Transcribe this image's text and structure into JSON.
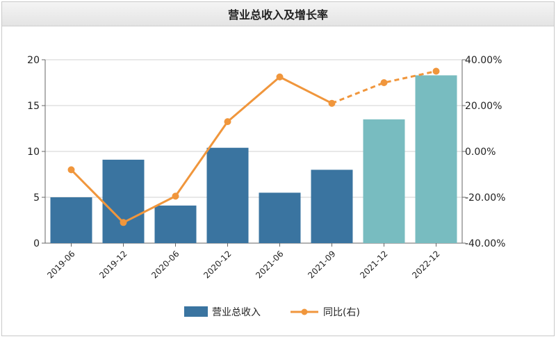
{
  "chart_data": {
    "type": "bar",
    "title": "营业总收入及增长率",
    "categories": [
      "2019-06",
      "2019-12",
      "2020-06",
      "2020-12",
      "2021-06",
      "2021-09",
      "2021-12",
      "2022-12"
    ],
    "series": [
      {
        "name": "营业总收入",
        "type": "bar",
        "axis": "left",
        "values": [
          5.0,
          9.1,
          4.1,
          10.4,
          5.5,
          8.0,
          13.5,
          18.3
        ],
        "colors": [
          "#3a74a0",
          "#3a74a0",
          "#3a74a0",
          "#3a74a0",
          "#3a74a0",
          "#3a74a0",
          "#78bcc0",
          "#78bcc0"
        ],
        "estimated_from_index": 6
      },
      {
        "name": "同比(右)",
        "type": "line",
        "axis": "right",
        "values": [
          -8.0,
          -31.0,
          -19.5,
          13.0,
          32.5,
          21.0,
          30.0,
          35.0
        ],
        "color": "#f0963c",
        "dashed_from_index": 5
      }
    ],
    "y_left": {
      "range": [
        0,
        20
      ],
      "ticks": [
        "0",
        "5",
        "10",
        "15",
        "20"
      ]
    },
    "y_right": {
      "range": [
        -40,
        40
      ],
      "ticks": [
        "-40.00%",
        "-20.00%",
        "0.00%",
        "20.00%",
        "40.00%"
      ]
    },
    "grid": true,
    "legend": "bottom-center"
  }
}
